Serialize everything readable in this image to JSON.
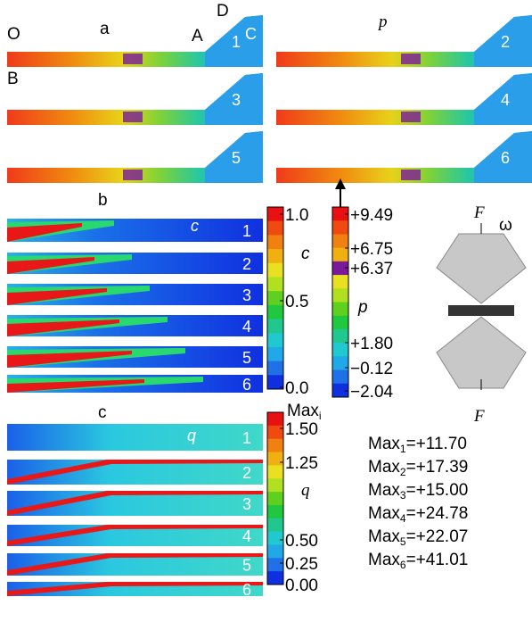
{
  "panel_a": {
    "label": "a",
    "variable": "p",
    "points": {
      "O": "O",
      "A": "A",
      "B": "B",
      "C": "C",
      "D": "D"
    },
    "numbers": [
      "1",
      "2",
      "3",
      "4",
      "5",
      "6"
    ]
  },
  "panel_b": {
    "label": "b",
    "variable": "c",
    "numbers": [
      "1",
      "2",
      "3",
      "4",
      "5",
      "6"
    ]
  },
  "panel_c": {
    "label": "c",
    "variable": "q",
    "numbers": [
      "1",
      "2",
      "3",
      "4",
      "5",
      "6"
    ]
  },
  "colorbar_c": {
    "label": "c",
    "ticks": [
      "1.0",
      "0.5",
      "0.0"
    ]
  },
  "colorbar_p": {
    "label": "p",
    "ticks": [
      "+9.49",
      "+6.75",
      "+6.37",
      "+1.80",
      "−0.12",
      "−2.04"
    ]
  },
  "colorbar_q": {
    "title": "Max",
    "title_sub": "i",
    "label": "q",
    "ticks": [
      "1.50",
      "1.25",
      "0.50",
      "0.25",
      "0.00"
    ]
  },
  "anvil": {
    "force_top": "F",
    "rotation": "ω",
    "force_bottom": "F"
  },
  "max_values": [
    {
      "text": "Max",
      "sub": "1",
      "value": "=+11.70"
    },
    {
      "text": "Max",
      "sub": "2",
      "value": "=+17.39"
    },
    {
      "text": "Max",
      "sub": "3",
      "value": "=+15.00"
    },
    {
      "text": "Max",
      "sub": "4",
      "value": "=+24.78"
    },
    {
      "text": "Max",
      "sub": "5",
      "value": "=+22.07"
    },
    {
      "text": "Max",
      "sub": "6",
      "value": "=+41.01"
    }
  ]
}
